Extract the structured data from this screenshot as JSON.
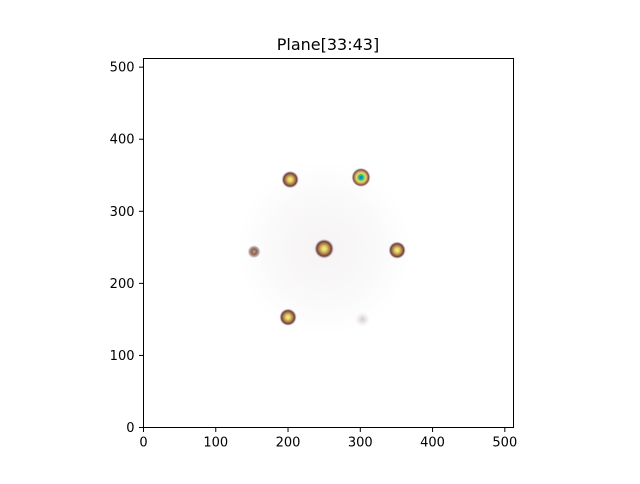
{
  "chart_data": {
    "type": "heatmap",
    "title": "Plane[33:43]",
    "xlabel": "",
    "ylabel": "",
    "xlim": [
      0,
      512
    ],
    "ylim": [
      0,
      512
    ],
    "x_ticks": [
      0,
      100,
      200,
      300,
      400,
      500
    ],
    "y_ticks": [
      0,
      100,
      200,
      300,
      400,
      500
    ],
    "grid": false,
    "colormap": "terrain_r",
    "halo": {
      "x": 250,
      "y": 248,
      "radius": 120,
      "intensity": 0.06
    },
    "spots": [
      {
        "x": 250,
        "y": 248,
        "intensity": 0.8
      },
      {
        "x": 301,
        "y": 347,
        "intensity": 1.0
      },
      {
        "x": 203,
        "y": 344,
        "intensity": 0.62
      },
      {
        "x": 351,
        "y": 246,
        "intensity": 0.62
      },
      {
        "x": 153,
        "y": 244,
        "intensity": 0.3
      },
      {
        "x": 200,
        "y": 153,
        "intensity": 0.62
      },
      {
        "x": 303,
        "y": 150,
        "intensity": 0.12
      }
    ]
  }
}
